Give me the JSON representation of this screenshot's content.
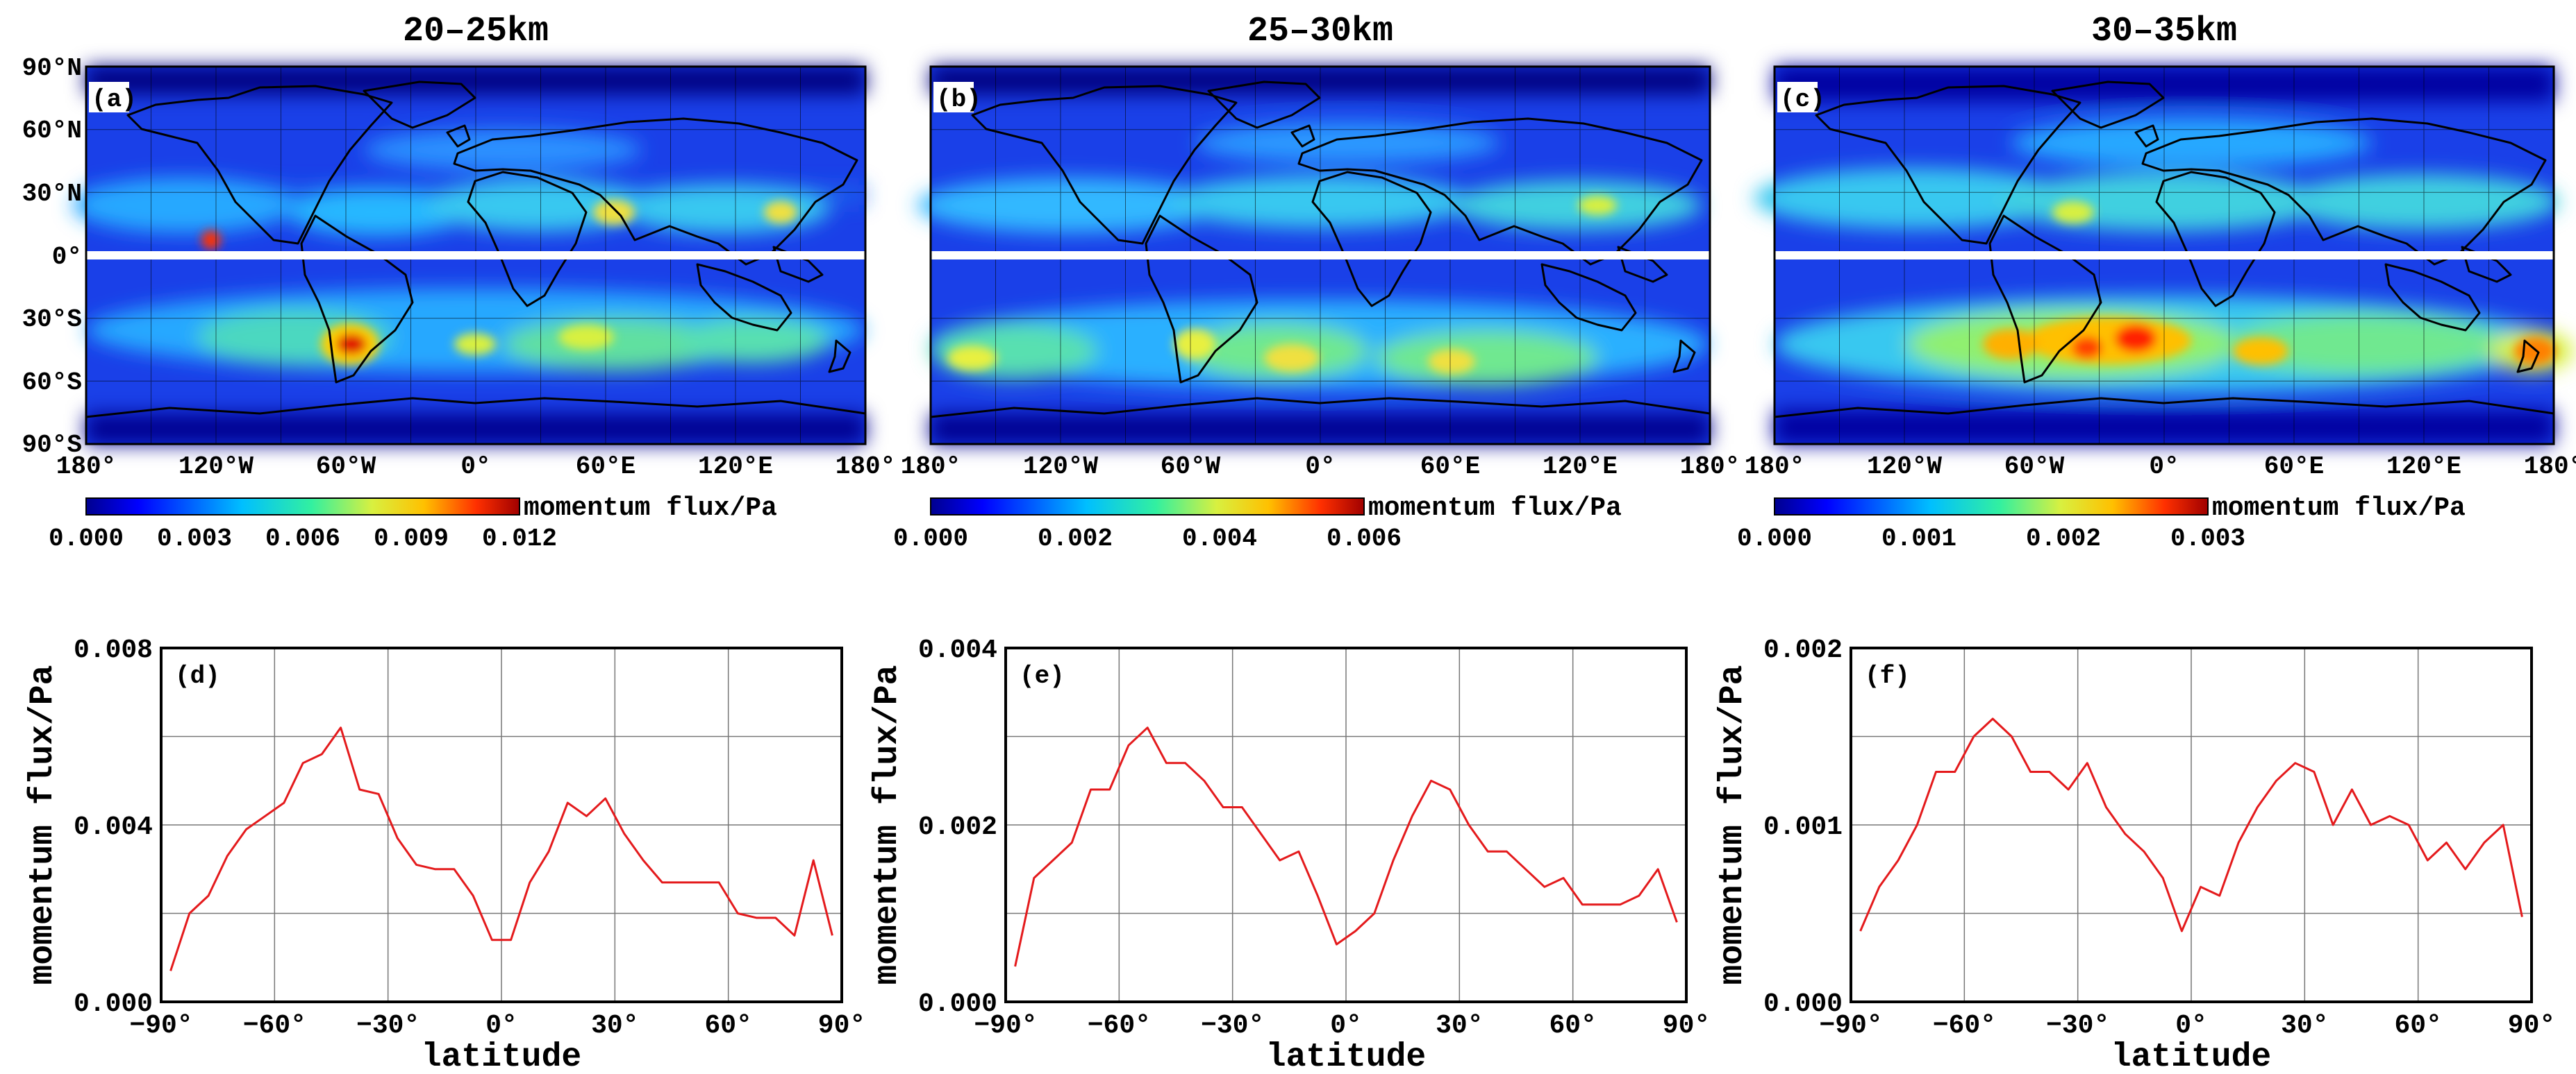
{
  "figure": {
    "maps": [
      {
        "panel": "(a)",
        "title": "20–25km",
        "colorbar_label": "momentum flux/Pa",
        "colorbar_ticks": [
          "0.000",
          "0.003",
          "0.006",
          "0.009",
          "0.012"
        ],
        "lat_ticks": [
          "90°N",
          "60°N",
          "30°N",
          "0°",
          "30°S",
          "60°S",
          "90°S"
        ],
        "lon_ticks": [
          "180°",
          "120°W",
          "60°W",
          "0°",
          "60°E",
          "120°E",
          "180°"
        ]
      },
      {
        "panel": "(b)",
        "title": "25–30km",
        "colorbar_label": "momentum flux/Pa",
        "colorbar_ticks": [
          "0.000",
          "0.002",
          "0.004",
          "0.006"
        ],
        "lat_ticks": [],
        "lon_ticks": [
          "180°",
          "120°W",
          "60°W",
          "0°",
          "60°E",
          "120°E",
          "180°"
        ]
      },
      {
        "panel": "(c)",
        "title": "30–35km",
        "colorbar_label": "momentum flux/Pa",
        "colorbar_ticks": [
          "0.000",
          "0.001",
          "0.002",
          "0.003"
        ],
        "lat_ticks": [],
        "lon_ticks": [
          "180°",
          "120°W",
          "60°W",
          "0°",
          "60°E",
          "120°E",
          "180°"
        ]
      }
    ]
  },
  "chart_data": [
    {
      "type": "line",
      "panel": "(d)",
      "xlabel": "latitude",
      "ylabel": "momentum flux/Pa",
      "xlim": [
        -90,
        90
      ],
      "ylim": [
        0,
        0.008
      ],
      "x_tick_labels": [
        "−90°",
        "−60°",
        "−30°",
        "0°",
        "30°",
        "60°",
        "90°"
      ],
      "y_tick_labels": [
        "0.000",
        "0.004",
        "0.008"
      ],
      "line_color": "#e41a1c",
      "x": [
        -87.5,
        -82.5,
        -77.5,
        -72.5,
        -67.5,
        -62.5,
        -57.5,
        -52.5,
        -47.5,
        -42.5,
        -37.5,
        -32.5,
        -27.5,
        -22.5,
        -17.5,
        -12.5,
        -7.5,
        -2.5,
        2.5,
        7.5,
        12.5,
        17.5,
        22.5,
        27.5,
        32.5,
        37.5,
        42.5,
        47.5,
        52.5,
        57.5,
        62.5,
        67.5,
        72.5,
        77.5,
        82.5,
        87.5
      ],
      "values": [
        0.0007,
        0.002,
        0.0024,
        0.0033,
        0.0039,
        0.0042,
        0.0045,
        0.0054,
        0.0056,
        0.0062,
        0.0048,
        0.0047,
        0.0037,
        0.0031,
        0.003,
        0.003,
        0.0024,
        0.0014,
        0.0014,
        0.0027,
        0.0034,
        0.0045,
        0.0042,
        0.0046,
        0.0038,
        0.0032,
        0.0027,
        0.0027,
        0.0027,
        0.0027,
        0.002,
        0.0019,
        0.0019,
        0.0015,
        0.0032,
        0.0015
      ]
    },
    {
      "type": "line",
      "panel": "(e)",
      "xlabel": "latitude",
      "ylabel": "momentum flux/Pa",
      "xlim": [
        -90,
        90
      ],
      "ylim": [
        0,
        0.004
      ],
      "x_tick_labels": [
        "−90°",
        "−60°",
        "−30°",
        "0°",
        "30°",
        "60°",
        "90°"
      ],
      "y_tick_labels": [
        "0.000",
        "0.002",
        "0.004"
      ],
      "line_color": "#e41a1c",
      "x": [
        -87.5,
        -82.5,
        -77.5,
        -72.5,
        -67.5,
        -62.5,
        -57.5,
        -52.5,
        -47.5,
        -42.5,
        -37.5,
        -32.5,
        -27.5,
        -22.5,
        -17.5,
        -12.5,
        -7.5,
        -2.5,
        2.5,
        7.5,
        12.5,
        17.5,
        22.5,
        27.5,
        32.5,
        37.5,
        42.5,
        47.5,
        52.5,
        57.5,
        62.5,
        67.5,
        72.5,
        77.5,
        82.5,
        87.5
      ],
      "values": [
        0.0004,
        0.0014,
        0.0016,
        0.0018,
        0.0024,
        0.0024,
        0.0029,
        0.0031,
        0.0027,
        0.0027,
        0.0025,
        0.0022,
        0.0022,
        0.0019,
        0.0016,
        0.0017,
        0.0012,
        0.00065,
        0.0008,
        0.001,
        0.0016,
        0.0021,
        0.0025,
        0.0024,
        0.002,
        0.0017,
        0.0017,
        0.0015,
        0.0013,
        0.0014,
        0.0011,
        0.0011,
        0.0011,
        0.0012,
        0.0015,
        0.0009
      ]
    },
    {
      "type": "line",
      "panel": "(f)",
      "xlabel": "latitude",
      "ylabel": "momentum flux/Pa",
      "xlim": [
        -90,
        90
      ],
      "ylim": [
        0,
        0.002
      ],
      "x_tick_labels": [
        "−90°",
        "−60°",
        "−30°",
        "0°",
        "30°",
        "60°",
        "90°"
      ],
      "y_tick_labels": [
        "0.000",
        "0.001",
        "0.002"
      ],
      "line_color": "#e41a1c",
      "x": [
        -87.5,
        -82.5,
        -77.5,
        -72.5,
        -67.5,
        -62.5,
        -57.5,
        -52.5,
        -47.5,
        -42.5,
        -37.5,
        -32.5,
        -27.5,
        -22.5,
        -17.5,
        -12.5,
        -7.5,
        -2.5,
        2.5,
        7.5,
        12.5,
        17.5,
        22.5,
        27.5,
        32.5,
        37.5,
        42.5,
        47.5,
        52.5,
        57.5,
        62.5,
        67.5,
        72.5,
        77.5,
        82.5,
        87.5
      ],
      "values": [
        0.0004,
        0.00065,
        0.0008,
        0.001,
        0.0013,
        0.0013,
        0.0015,
        0.0016,
        0.0015,
        0.0013,
        0.0013,
        0.0012,
        0.00135,
        0.0011,
        0.00095,
        0.00085,
        0.0007,
        0.0004,
        0.00065,
        0.0006,
        0.0009,
        0.0011,
        0.00125,
        0.00135,
        0.0013,
        0.001,
        0.0012,
        0.001,
        0.00105,
        0.001,
        0.0008,
        0.0009,
        0.00075,
        0.0009,
        0.001,
        0.00048
      ]
    }
  ]
}
